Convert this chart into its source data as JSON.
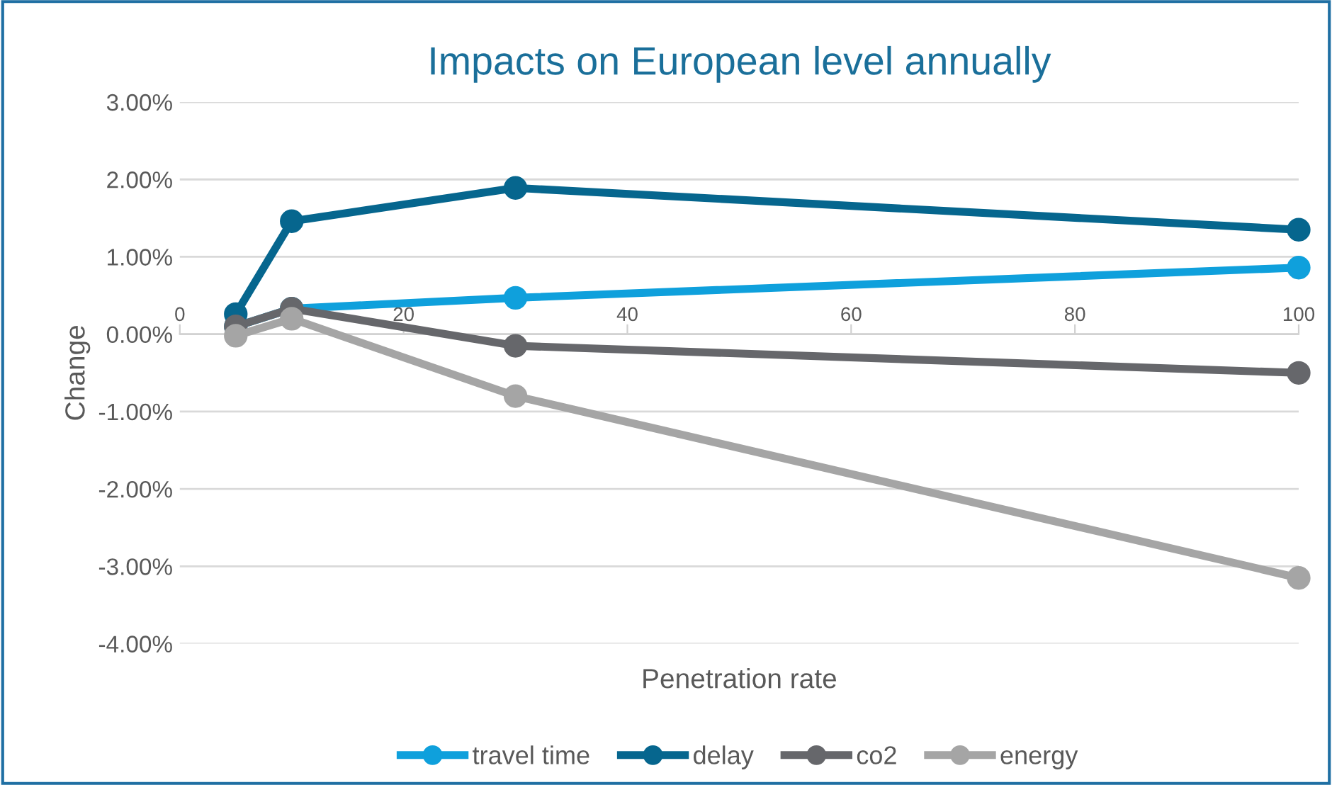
{
  "chart_data": {
    "type": "line",
    "title": "Impacts on European level annually",
    "xlabel": "Penetration rate",
    "ylabel": "Change",
    "x": [
      5,
      10,
      30,
      100
    ],
    "series": [
      {
        "name": "travel time",
        "color": "#0fa0dc",
        "values": [
          0.1,
          0.33,
          0.47,
          0.86
        ]
      },
      {
        "name": "delay",
        "color": "#06668e",
        "values": [
          0.26,
          1.46,
          1.89,
          1.35
        ]
      },
      {
        "name": "co2",
        "color": "#66676b",
        "values": [
          0.1,
          0.33,
          -0.15,
          -0.5
        ]
      },
      {
        "name": "energy",
        "color": "#a5a5a5",
        "values": [
          -0.02,
          0.2,
          -0.8,
          -3.15
        ]
      }
    ],
    "xlim": [
      0,
      100
    ],
    "xticks": [
      0,
      20,
      40,
      60,
      80,
      100
    ],
    "ylim": [
      -4,
      3
    ],
    "yticks": [
      {
        "value": -4,
        "label": "-4.00%"
      },
      {
        "value": -3,
        "label": "-3.00%"
      },
      {
        "value": -2,
        "label": "-2.00%"
      },
      {
        "value": -1,
        "label": "-1.00%"
      },
      {
        "value": 0,
        "label": "0.00%"
      },
      {
        "value": 1,
        "label": "1.00%"
      },
      {
        "value": 2,
        "label": "2.00%"
      },
      {
        "value": 3,
        "label": "3.00%"
      }
    ],
    "grid": "y",
    "legend": "bottom",
    "marker": "circle",
    "line_style": "solid"
  }
}
